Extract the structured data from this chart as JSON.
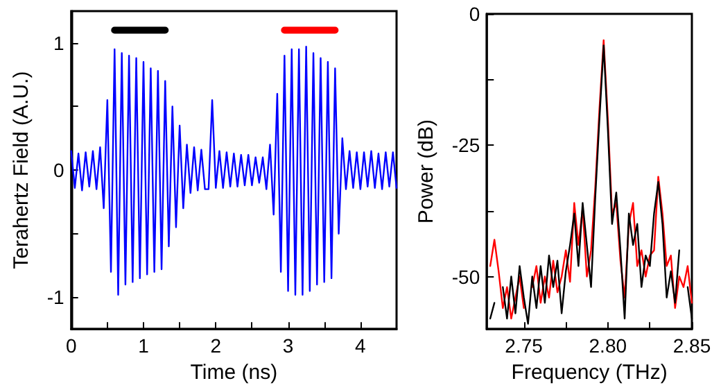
{
  "chart_data": [
    {
      "type": "line",
      "xlabel": "Time (ns)",
      "ylabel": "Terahertz Field (A.U.)",
      "xlim": [
        0,
        4.5
      ],
      "ylim": [
        -1.25,
        1.25
      ],
      "xticks": [
        0,
        {
          "value": 0.5,
          "label": null
        },
        1,
        {
          "value": 1.5,
          "label": null
        },
        2,
        {
          "value": 2.5,
          "label": null
        },
        3,
        {
          "value": 3.5,
          "label": null
        },
        4
      ],
      "yticks": [
        -1,
        {
          "value": -0.5,
          "label": null
        },
        0,
        {
          "value": 0.5,
          "label": null
        },
        1
      ],
      "grid": false,
      "marker": "none",
      "line_style": "solid",
      "series": [
        {
          "color": "#0000ff",
          "x": [
            0,
            0.05,
            0.1,
            0.15,
            0.2,
            0.25,
            0.3,
            0.35,
            0.4,
            0.45,
            0.5,
            0.55,
            0.6,
            0.65,
            0.7,
            0.75,
            0.8,
            0.85,
            0.9,
            0.95,
            1.0,
            1.05,
            1.1,
            1.15,
            1.2,
            1.25,
            1.3,
            1.35,
            1.4,
            1.45,
            1.5,
            1.55,
            1.6,
            1.65,
            1.7,
            1.75,
            1.8,
            1.85,
            1.9,
            1.95,
            2.0,
            2.05,
            2.1,
            2.15,
            2.2,
            2.25,
            2.3,
            2.35,
            2.4,
            2.45,
            2.5,
            2.55,
            2.6,
            2.65,
            2.7,
            2.75,
            2.8,
            2.85,
            2.9,
            2.95,
            3.0,
            3.05,
            3.1,
            3.15,
            3.2,
            3.25,
            3.3,
            3.35,
            3.4,
            3.45,
            3.5,
            3.55,
            3.6,
            3.65,
            3.7,
            3.75,
            3.8,
            3.85,
            3.9,
            3.95,
            4.0,
            4.05,
            4.1,
            4.15,
            4.2,
            4.25,
            4.3,
            4.35,
            4.4,
            4.45,
            4.5
          ],
          "values": [
            0.15,
            -0.14,
            0.13,
            -0.16,
            0.14,
            -0.13,
            0.15,
            -0.15,
            0.18,
            -0.3,
            0.55,
            -0.8,
            0.95,
            -0.98,
            0.92,
            -0.9,
            0.9,
            -0.88,
            0.88,
            -0.85,
            0.85,
            -0.82,
            0.8,
            -0.8,
            0.78,
            -0.78,
            0.7,
            -0.6,
            0.5,
            -0.45,
            0.35,
            -0.3,
            0.2,
            -0.18,
            0.18,
            -0.16,
            0.16,
            -0.15,
            -0.15,
            0.55,
            -0.14,
            0.15,
            -0.14,
            0.14,
            -0.13,
            0.13,
            -0.13,
            0.12,
            -0.12,
            0.12,
            -0.12,
            0.1,
            -0.1,
            0.1,
            -0.15,
            0.2,
            -0.35,
            0.6,
            -0.8,
            0.9,
            -0.95,
            0.95,
            -0.98,
            0.95,
            -0.98,
            0.97,
            -0.95,
            0.92,
            -0.9,
            0.88,
            -0.88,
            0.85,
            -0.85,
            0.8,
            -0.5,
            0.25,
            -0.15,
            0.15,
            -0.14,
            0.14,
            -0.15,
            0.14,
            -0.13,
            0.15,
            -0.14,
            0.13,
            -0.15,
            0.14,
            -0.13,
            0.14,
            -0.14
          ]
        },
        {
          "color": "#000000",
          "x": [
            0.6,
            1.3
          ],
          "values": [
            1.1,
            1.1
          ]
        },
        {
          "color": "#ff0000",
          "x": [
            2.95,
            3.65
          ],
          "values": [
            1.1,
            1.1
          ]
        }
      ]
    },
    {
      "type": "line",
      "xlabel": "Frequency (THz)",
      "ylabel": "Power (dB)",
      "xlim": [
        2.728,
        2.85
      ],
      "ylim": [
        -60,
        0
      ],
      "xticks": [
        {
          "value": 2.75,
          "label": "2.75"
        },
        {
          "value": 2.775,
          "label": null
        },
        {
          "value": 2.8,
          "label": "2.80"
        },
        {
          "value": 2.825,
          "label": null
        },
        {
          "value": 2.85,
          "label": "2.85"
        }
      ],
      "yticks": [
        -50,
        {
          "value": -37.5,
          "label": null
        },
        -25,
        {
          "value": -12.5,
          "label": null
        },
        0
      ],
      "grid": false,
      "marker": "none",
      "line_style": "solid",
      "x": [
        2.73,
        2.7325,
        2.735,
        2.7375,
        2.74,
        2.7425,
        2.745,
        2.7475,
        2.75,
        2.7525,
        2.755,
        2.7575,
        2.76,
        2.7625,
        2.765,
        2.7675,
        2.77,
        2.7725,
        2.775,
        2.7775,
        2.78,
        2.7825,
        2.785,
        2.7875,
        2.79,
        2.7925,
        2.795,
        2.7975,
        2.8,
        2.8025,
        2.805,
        2.8075,
        2.81,
        2.8125,
        2.815,
        2.8175,
        2.82,
        2.8225,
        2.825,
        2.8275,
        2.83,
        2.8325,
        2.835,
        2.8375,
        2.84,
        2.8425,
        2.845,
        2.8475,
        2.85
      ],
      "series": [
        {
          "color": "#ff0000",
          "values": [
            -48,
            -43,
            -49,
            -56,
            -52,
            -58,
            -54,
            -50,
            -56,
            null,
            -52,
            -48,
            -55,
            -50,
            -54,
            -47,
            -53,
            -50,
            -45,
            -51,
            -36,
            -44,
            -37,
            -50,
            -45,
            -33,
            -18,
            -5,
            -20,
            -38,
            -36,
            -47,
            -54,
            -40,
            -36,
            -48,
            -45,
            -50,
            -46,
            -45,
            -31,
            -38,
            -48,
            -46,
            -56,
            -50,
            -52,
            -48,
            -55
          ]
        },
        {
          "color": "#000000",
          "values": [
            -58,
            -55,
            null,
            -52,
            -58,
            -50,
            -57,
            -48,
            -54,
            -59,
            -50,
            -56,
            -48,
            -55,
            -46,
            -52,
            -47,
            -57,
            -49,
            -44,
            -38,
            -48,
            -36,
            -44,
            -52,
            -35,
            -20,
            -6,
            -22,
            -40,
            -34,
            -45,
            -58,
            -38,
            -44,
            -40,
            -52,
            -46,
            -48,
            -38,
            -32,
            -40,
            -54,
            -49,
            -55,
            -45,
            null,
            -52,
            -58
          ]
        }
      ]
    }
  ]
}
